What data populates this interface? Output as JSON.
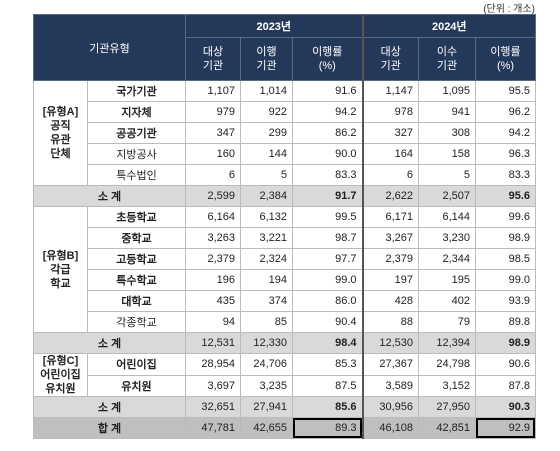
{
  "unit": "(단위 : 개소)",
  "header": {
    "type_label": "기관유형",
    "years": [
      {
        "label": "2023년",
        "cols": [
          [
            "대상",
            "기관"
          ],
          [
            "이행",
            "기관"
          ],
          [
            "이행률",
            "(%)"
          ]
        ]
      },
      {
        "label": "2024년",
        "cols": [
          [
            "대상",
            "기관"
          ],
          [
            "이수",
            "기관"
          ],
          [
            "이행률",
            "(%)"
          ]
        ]
      }
    ]
  },
  "groups": [
    {
      "label": [
        "[유형A]",
        "공직",
        "유관",
        "단체"
      ],
      "rows": [
        {
          "name": "국가기관",
          "bold": true,
          "values": [
            "1,107",
            "1,014",
            "91.6",
            "1,147",
            "1,095",
            "95.5"
          ]
        },
        {
          "name": "지자체",
          "bold": true,
          "values": [
            "979",
            "922",
            "94.2",
            "978",
            "941",
            "96.2"
          ]
        },
        {
          "name": "공공기관",
          "bold": true,
          "values": [
            "347",
            "299",
            "86.2",
            "327",
            "308",
            "94.2"
          ]
        },
        {
          "name": "지방공사",
          "bold": false,
          "values": [
            "160",
            "144",
            "90.0",
            "164",
            "158",
            "96.3"
          ]
        },
        {
          "name": "특수법인",
          "bold": false,
          "values": [
            "6",
            "5",
            "83.3",
            "6",
            "5",
            "83.3"
          ]
        }
      ],
      "subtotal": {
        "label": "소 계",
        "values": [
          "2,599",
          "2,384",
          "91.7",
          "2,622",
          "2,507",
          "95.6"
        ]
      }
    },
    {
      "label": [
        "[유형B]",
        "각급",
        "학교"
      ],
      "rows": [
        {
          "name": "초등학교",
          "bold": true,
          "values": [
            "6,164",
            "6,132",
            "99.5",
            "6,171",
            "6,144",
            "99.6"
          ]
        },
        {
          "name": "중학교",
          "bold": true,
          "values": [
            "3,263",
            "3,221",
            "98.7",
            "3,267",
            "3,230",
            "98.9"
          ]
        },
        {
          "name": "고등학교",
          "bold": true,
          "values": [
            "2,379",
            "2,324",
            "97.7",
            "2,379",
            "2,344",
            "98.5"
          ]
        },
        {
          "name": "특수학교",
          "bold": true,
          "values": [
            "196",
            "194",
            "99.0",
            "197",
            "195",
            "99.0"
          ]
        },
        {
          "name": "대학교",
          "bold": true,
          "values": [
            "435",
            "374",
            "86.0",
            "428",
            "402",
            "93.9"
          ]
        },
        {
          "name": "각종학교",
          "bold": false,
          "values": [
            "94",
            "85",
            "90.4",
            "88",
            "79",
            "89.8"
          ]
        }
      ],
      "subtotal": {
        "label": "소 계",
        "values": [
          "12,531",
          "12,330",
          "98.4",
          "12,530",
          "12,394",
          "98.9"
        ]
      }
    },
    {
      "label": [
        "[유형C]",
        "어린이집",
        "유치원"
      ],
      "rows": [
        {
          "name": "어린이집",
          "bold": true,
          "values": [
            "28,954",
            "24,706",
            "85.3",
            "27,367",
            "24,798",
            "90.6"
          ]
        },
        {
          "name": "유치원",
          "bold": true,
          "values": [
            "3,697",
            "3,235",
            "87.5",
            "3,589",
            "3,152",
            "87.8"
          ]
        }
      ],
      "subtotal": {
        "label": "소 계",
        "values": [
          "32,651",
          "27,941",
          "85.6",
          "30,956",
          "27,950",
          "90.3"
        ]
      }
    }
  ],
  "total": {
    "label": "합 계",
    "values": [
      "47,781",
      "42,655",
      "89.3",
      "46,108",
      "42,851",
      "92.9"
    ]
  }
}
